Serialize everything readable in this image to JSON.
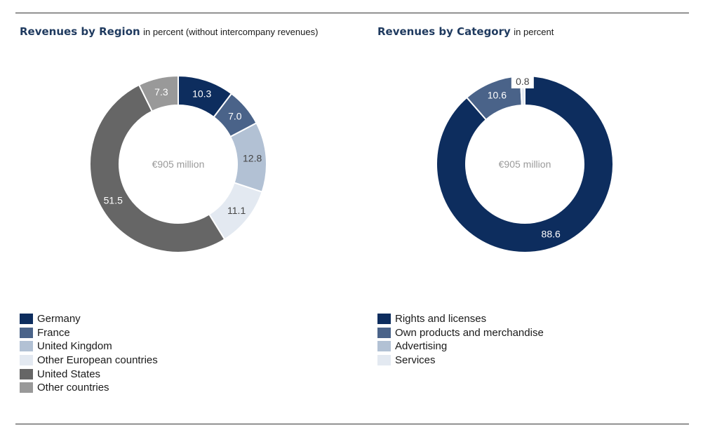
{
  "charts": [
    {
      "title": "Revenues by Region",
      "subtitle": "in percent (without intercompany revenues)",
      "center_label": "€905 million"
    },
    {
      "title": "Revenues by Category",
      "subtitle": "in percent",
      "center_label": "€905 million"
    }
  ],
  "chart_data": [
    {
      "type": "pie",
      "donut": true,
      "title": "Revenues by Region",
      "subtitle": "in percent (without intercompany revenues)",
      "center_label": "€905 million",
      "legend_position": "bottom-left",
      "categories": [
        "Germany",
        "France",
        "United Kingdom",
        "Other European countries",
        "United States",
        "Other countries"
      ],
      "values": [
        10.3,
        7.0,
        12.8,
        11.1,
        51.5,
        7.3
      ],
      "labels": [
        "10.3",
        "7.0",
        "12.8",
        "11.1",
        "51.5",
        "7.3"
      ],
      "colors": [
        "#0d2d5e",
        "#4a6389",
        "#b2c1d4",
        "#e3e9f1",
        "#666666",
        "#999999"
      ],
      "label_colors": [
        "#ffffff",
        "#ffffff",
        "#444444",
        "#444444",
        "#ffffff",
        "#ffffff"
      ]
    },
    {
      "type": "pie",
      "donut": true,
      "title": "Revenues by Category",
      "subtitle": "in percent",
      "center_label": "€905 million",
      "legend_position": "bottom-left",
      "categories": [
        "Rights and licenses",
        "Own products and merchandise",
        "Advertising",
        "Services"
      ],
      "values": [
        88.6,
        10.6,
        0.8
      ],
      "labels": [
        "88.6",
        "10.6",
        "0.8"
      ],
      "slice_categories": [
        "Rights and licenses",
        "Own products and merchandise",
        "Services"
      ],
      "colors": [
        "#0d2d5e",
        "#4a6389",
        "#b2c1d4",
        "#e3e9f1"
      ],
      "slice_colors": [
        "#0d2d5e",
        "#4a6389",
        "#e3e9f1"
      ],
      "label_colors": [
        "#ffffff",
        "#ffffff",
        "#444444"
      ]
    }
  ]
}
